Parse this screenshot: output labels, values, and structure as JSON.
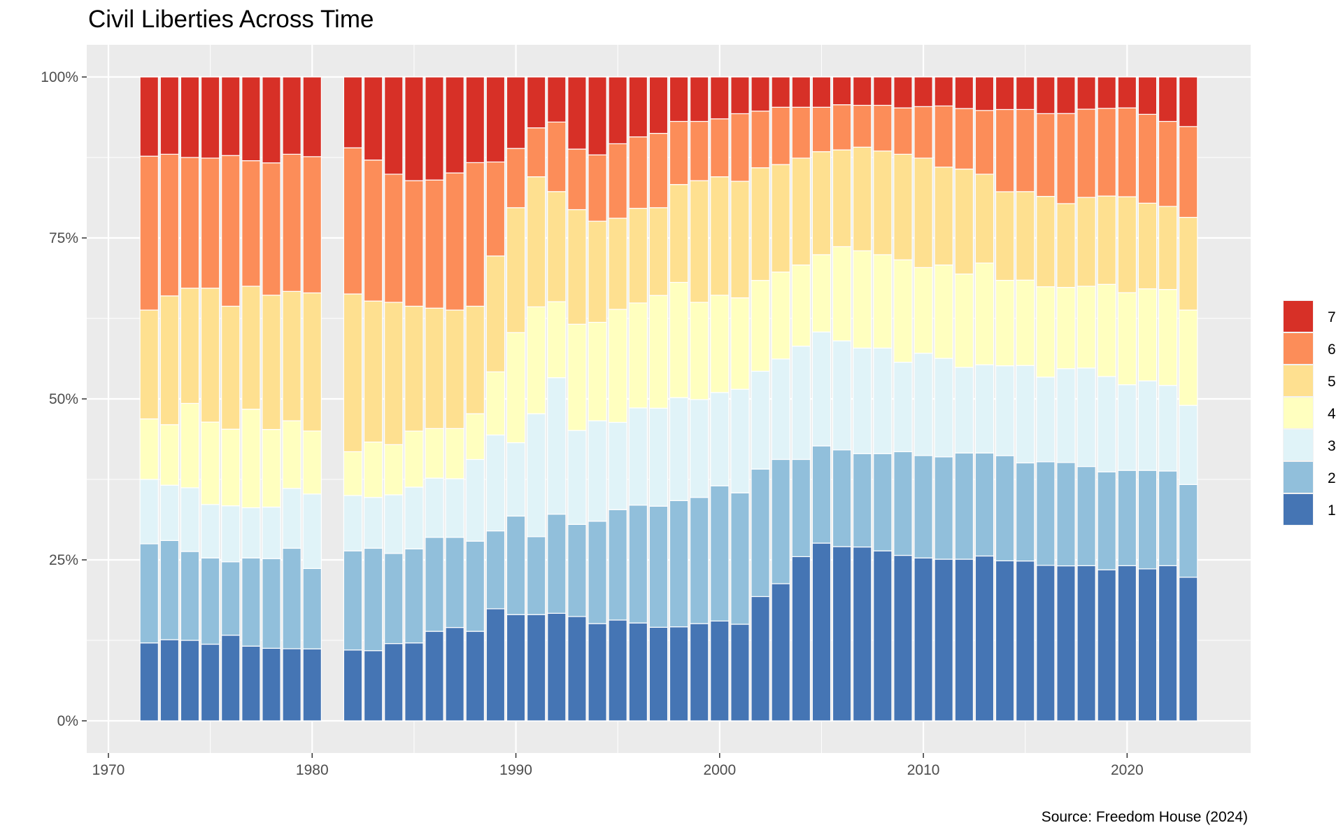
{
  "chart_data": {
    "type": "bar",
    "stacked": "percent",
    "title": "Civil Liberties Across Time",
    "caption": "Source: Freedom House (2024)",
    "xlabel": "",
    "ylabel": "",
    "xlim": [
      1970,
      2025
    ],
    "ylim": [
      0,
      100
    ],
    "x_ticks": [
      1970,
      1980,
      1990,
      2000,
      2010,
      2020
    ],
    "x_tick_labels": [
      "1970",
      "1980",
      "1990",
      "2000",
      "2010",
      "2020"
    ],
    "y_ticks": [
      0,
      25,
      50,
      75,
      100
    ],
    "y_tick_labels": [
      "0%",
      "25%",
      "50%",
      "75%",
      "100%"
    ],
    "grid": true,
    "legend_position": "right",
    "legend_order": [
      "7",
      "6",
      "5",
      "4",
      "3",
      "2",
      "1"
    ],
    "colors": {
      "1": "#4575b4",
      "2": "#91bfdb",
      "3": "#e0f3f8",
      "4": "#ffffbf",
      "5": "#fee090",
      "6": "#fc8d59",
      "7": "#d73027"
    },
    "panel_background": "#ebebeb",
    "x": [
      1972,
      1973,
      1974,
      1975,
      1976,
      1977,
      1978,
      1979,
      1980,
      1982,
      1983,
      1984,
      1985,
      1986,
      1987,
      1988,
      1989,
      1990,
      1991,
      1992,
      1993,
      1994,
      1995,
      1996,
      1997,
      1998,
      1999,
      2000,
      2001,
      2002,
      2003,
      2004,
      2005,
      2006,
      2007,
      2008,
      2009,
      2010,
      2011,
      2012,
      2013,
      2014,
      2015,
      2016,
      2017,
      2018,
      2019,
      2020,
      2021,
      2022,
      2023
    ],
    "series": [
      {
        "name": "1",
        "values": [
          12.1,
          12.6,
          12.5,
          11.9,
          13.3,
          11.6,
          11.4,
          11.2,
          11.2,
          11.0,
          10.9,
          12.0,
          12.1,
          13.9,
          14.5,
          13.9,
          17.4,
          16.5,
          16.5,
          16.7,
          16.2,
          15.1,
          15.7,
          15.2,
          14.6,
          14.6,
          15.1,
          15.5,
          15.0,
          19.3,
          21.3,
          25.5,
          27.6,
          27.0,
          27.0,
          26.4,
          25.7,
          25.3,
          25.1,
          25.1,
          25.6,
          25.1,
          25.1,
          24.6,
          24.6,
          24.1,
          23.6,
          24.1,
          23.6,
          24.1,
          22.3
        ]
      },
      {
        "name": "2",
        "values": [
          15.4,
          15.4,
          13.8,
          13.4,
          11.4,
          13.7,
          14.1,
          15.6,
          12.5,
          15.4,
          15.9,
          14.0,
          14.6,
          14.6,
          14.0,
          14.0,
          12.1,
          15.3,
          12.1,
          15.4,
          14.3,
          15.9,
          17.2,
          18.3,
          18.9,
          19.6,
          19.6,
          21.0,
          20.4,
          19.8,
          19.3,
          15.1,
          15.1,
          15.0,
          14.5,
          15.1,
          16.1,
          15.9,
          15.9,
          16.5,
          16.0,
          16.5,
          15.4,
          16.4,
          16.4,
          15.4,
          15.3,
          14.8,
          15.3,
          14.7,
          14.4
        ]
      },
      {
        "name": "3",
        "values": [
          10.0,
          8.6,
          9.9,
          8.3,
          8.7,
          7.8,
          8.1,
          9.3,
          11.6,
          8.6,
          7.9,
          9.1,
          9.6,
          9.2,
          9.1,
          12.7,
          14.9,
          11.4,
          19.1,
          21.2,
          14.6,
          15.6,
          13.6,
          15.1,
          15.3,
          16.0,
          15.2,
          14.5,
          16.1,
          15.2,
          15.6,
          17.6,
          17.7,
          16.9,
          16.4,
          16.4,
          13.9,
          15.9,
          15.3,
          13.3,
          13.7,
          14.1,
          15.3,
          13.4,
          14.9,
          15.3,
          14.9,
          13.3,
          13.9,
          13.3,
          12.3
        ]
      },
      {
        "name": "4",
        "values": [
          9.4,
          9.4,
          13.1,
          12.8,
          11.9,
          15.3,
          12.2,
          10.5,
          9.8,
          6.8,
          8.6,
          7.8,
          8.7,
          7.7,
          7.8,
          7.1,
          9.8,
          17.1,
          16.6,
          11.8,
          16.5,
          15.3,
          17.6,
          16.3,
          17.6,
          17.9,
          15.1,
          15.1,
          14.2,
          14.1,
          13.5,
          12.6,
          12.0,
          14.6,
          15.1,
          14.5,
          15.9,
          13.3,
          14.5,
          14.5,
          15.8,
          13.4,
          13.4,
          14.3,
          12.9,
          12.7,
          14.4,
          14.3,
          14.3,
          14.9,
          14.8
        ]
      },
      {
        "name": "5",
        "values": [
          16.9,
          20.0,
          17.9,
          20.8,
          19.1,
          19.1,
          21.1,
          20.1,
          21.5,
          24.5,
          21.9,
          22.1,
          19.4,
          18.7,
          18.4,
          16.7,
          18.0,
          19.4,
          20.2,
          17.1,
          17.8,
          15.7,
          14.2,
          14.7,
          13.7,
          15.2,
          18.9,
          18.4,
          18.1,
          17.5,
          16.7,
          16.6,
          16.0,
          15.0,
          16.1,
          16.1,
          16.4,
          17.0,
          15.2,
          16.3,
          13.8,
          13.9,
          13.9,
          14.3,
          13.3,
          13.8,
          13.8,
          14.9,
          13.3,
          12.9,
          14.4
        ]
      },
      {
        "name": "6",
        "values": [
          23.9,
          22.0,
          20.3,
          20.2,
          23.4,
          19.5,
          20.8,
          21.3,
          21.2,
          22.7,
          21.9,
          19.9,
          19.5,
          19.9,
          21.3,
          22.3,
          14.6,
          9.2,
          7.6,
          10.8,
          9.4,
          10.3,
          11.6,
          11.1,
          11.6,
          9.8,
          9.2,
          9.0,
          10.5,
          8.8,
          8.9,
          7.9,
          6.9,
          7.0,
          6.5,
          7.1,
          7.2,
          8.0,
          9.5,
          9.4,
          9.9,
          12.9,
          12.9,
          13.1,
          14.3,
          13.7,
          13.7,
          13.8,
          13.8,
          13.2,
          14.1
        ]
      },
      {
        "name": "7",
        "values": [
          12.3,
          12.0,
          12.5,
          12.6,
          12.2,
          13.0,
          13.5,
          12.0,
          12.4,
          11.0,
          12.9,
          15.1,
          16.1,
          16.0,
          14.9,
          13.3,
          13.2,
          11.1,
          7.9,
          7.0,
          11.2,
          12.1,
          10.4,
          9.3,
          8.8,
          6.9,
          6.9,
          6.5,
          5.7,
          5.3,
          4.7,
          4.7,
          4.7,
          4.3,
          4.4,
          4.4,
          4.8,
          4.6,
          4.5,
          4.9,
          5.2,
          5.1,
          5.1,
          5.8,
          5.8,
          5.0,
          4.9,
          4.8,
          5.8,
          6.9,
          7.7
        ]
      }
    ]
  }
}
